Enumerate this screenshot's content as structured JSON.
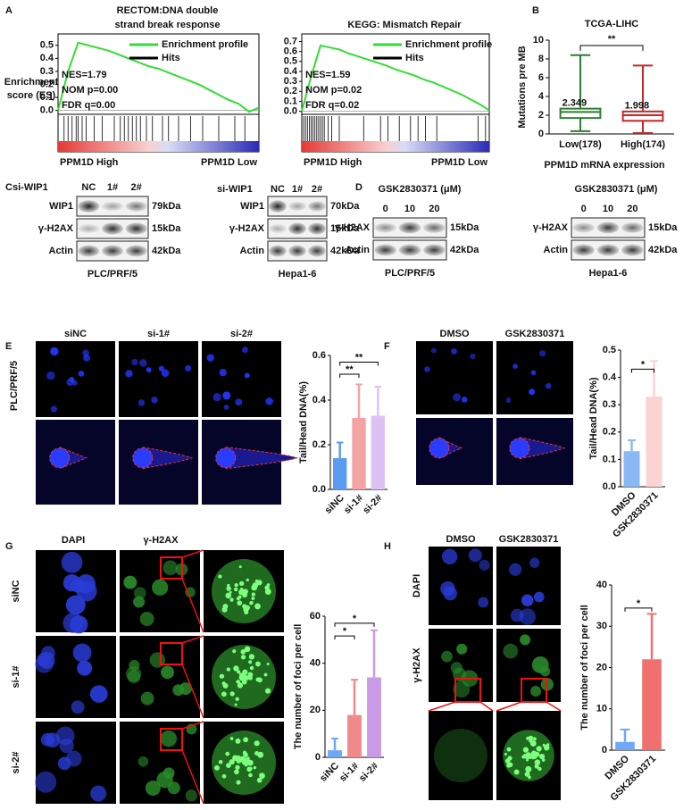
{
  "panel_labels": [
    "A",
    "B",
    "C",
    "D",
    "E",
    "F",
    "G",
    "H"
  ],
  "chart_data": [
    {
      "type": "gsea",
      "title": [
        "RECTOM:DNA double",
        "strand break response"
      ],
      "ylabel": [
        "Enrichment",
        "score (ES)"
      ],
      "x": [
        0,
        5,
        10,
        15,
        20,
        25,
        30,
        35,
        40,
        45,
        50,
        55,
        60,
        65,
        70,
        75,
        80,
        85,
        90,
        95,
        100
      ],
      "xlim": [
        0,
        100
      ],
      "ylim": [
        -0.03,
        0.56
      ],
      "yticks": [
        {
          "value": 0,
          "label": "0.0"
        },
        0.1,
        0.2,
        0.3,
        0.4,
        0.5
      ],
      "series": [
        {
          "name": "Enrichment profile",
          "color": "#33dd33",
          "values": [
            0,
            0.3,
            0.52,
            0.5,
            0.48,
            0.46,
            0.43,
            0.4,
            0.37,
            0.34,
            0.32,
            0.29,
            0.26,
            0.23,
            0.2,
            0.16,
            0.12,
            0.08,
            0.05,
            -0.01,
            0.02
          ]
        }
      ],
      "hits": {
        "name": "Hits",
        "color": "#000000",
        "x": [
          3,
          5,
          7,
          9,
          10,
          12,
          14,
          18,
          22,
          28,
          31,
          33,
          35,
          37,
          39,
          41,
          44,
          47,
          52,
          55,
          60,
          66,
          72,
          80,
          88,
          93
        ]
      },
      "annotations": [
        "NES=1.79",
        "NOM p=0.00",
        "FDR q=0.00"
      ],
      "gradient_labels": [
        {
          "text": "PPM1D High",
          "color": "#e53935"
        },
        {
          "text": "PPM1D Low",
          "color": "#1e88e5"
        }
      ]
    },
    {
      "type": "gsea",
      "title": [
        "KEGG: Mismatch Repair"
      ],
      "x": [
        0,
        5,
        10,
        15,
        20,
        25,
        30,
        35,
        40,
        45,
        50,
        55,
        60,
        65,
        70,
        75,
        80,
        85,
        90,
        95,
        100
      ],
      "xlim": [
        0,
        100
      ],
      "ylim": [
        -0.03,
        0.74
      ],
      "yticks": [
        {
          "value": 0,
          "label": "0.0"
        },
        0.1,
        0.2,
        0.3,
        0.4,
        0.5,
        0.6,
        0.7
      ],
      "series": [
        {
          "name": "Enrichment profile",
          "color": "#33dd33",
          "values": [
            0,
            0.35,
            0.66,
            0.64,
            0.62,
            0.58,
            0.55,
            0.52,
            0.49,
            0.46,
            0.42,
            0.39,
            0.36,
            0.32,
            0.29,
            0.25,
            0.21,
            0.17,
            0.12,
            0.07,
            0.01
          ]
        }
      ],
      "hits": {
        "name": "Hits",
        "color": "#000000",
        "x": [
          1,
          2,
          3,
          4,
          5,
          6,
          7,
          8,
          9,
          10,
          11,
          12,
          14,
          16,
          20,
          33,
          42,
          46,
          52,
          58,
          62,
          66,
          72,
          94,
          98
        ]
      },
      "annotations": [
        "NES=1.59",
        "NOM p=0.02",
        "FDR q=0.02"
      ],
      "gradient_labels": [
        {
          "text": "PPM1D High",
          "color": "#e53935"
        },
        {
          "text": "PPM1D Low",
          "color": "#1e88e5"
        }
      ]
    },
    {
      "type": "box",
      "title": "TCGA-LIHC",
      "ylabel": "Mutations pre MB",
      "xlabel": "PPM1D mRNA expression",
      "categories": [
        "Low(178)",
        "High(174)"
      ],
      "colors": [
        "#2e7d32",
        "#c62828"
      ],
      "boxes": [
        {
          "whislo": 0.3,
          "q1": 1.7,
          "med": 2.349,
          "q3": 2.7,
          "whishi": 8.4
        },
        {
          "whislo": 0.1,
          "q1": 1.4,
          "med": 1.998,
          "q3": 2.4,
          "whishi": 7.3
        }
      ],
      "ylim": [
        0,
        10
      ],
      "yticks": [
        0,
        2,
        4,
        6,
        8,
        10
      ],
      "significance": [
        "**"
      ]
    },
    {
      "type": "bar",
      "ylabel": "Tail/Head DNA(%)",
      "categories": [
        "siNC",
        "si-1#",
        "si-2#"
      ],
      "values": [
        0.14,
        0.32,
        0.33
      ],
      "errors": [
        0.07,
        0.15,
        0.13
      ],
      "colors": [
        "#5b9cf2",
        "#f4a3a3",
        "#dcc2f2"
      ],
      "ylim": [
        0,
        0.6
      ],
      "yticks": [
        {
          "value": 0,
          "label": "0.0"
        },
        0.2,
        0.4,
        0.6
      ],
      "significance": [
        "**",
        "**"
      ]
    },
    {
      "type": "bar",
      "ylabel": "Tail/Head DNA(%)",
      "categories": [
        "DMSO",
        "GSK2830371"
      ],
      "values": [
        0.13,
        0.33
      ],
      "errors": [
        0.04,
        0.13
      ],
      "colors": [
        "#8ab8f5",
        "#fbd3d3"
      ],
      "ylim": [
        0,
        0.5
      ],
      "yticks": [
        {
          "value": 0,
          "label": "0.0"
        },
        0.1,
        0.2,
        0.3,
        0.4,
        0.5
      ],
      "significance": [
        "*"
      ]
    },
    {
      "type": "bar",
      "ylabel": "The number of foci per cell",
      "categories": [
        "siNC",
        "si-1#",
        "si-2#"
      ],
      "values": [
        3,
        18,
        34
      ],
      "errors": [
        5,
        15,
        20
      ],
      "colors": [
        "#6fa8f7",
        "#f08a8a",
        "#c99be6"
      ],
      "ylim": [
        0,
        60
      ],
      "yticks": [
        0,
        20,
        40,
        60
      ],
      "significance": [
        "*",
        "*"
      ]
    },
    {
      "type": "bar",
      "ylabel": "The number of foci per cell",
      "categories": [
        "DMSO",
        "GSK2830371"
      ],
      "values": [
        2,
        22
      ],
      "errors": [
        3,
        11
      ],
      "colors": [
        "#6fa8f7",
        "#f07070"
      ],
      "ylim": [
        0,
        40
      ],
      "yticks": [
        0,
        10,
        20,
        30,
        40
      ],
      "significance": [
        "*"
      ]
    }
  ],
  "blots": [
    {
      "title": "si-WIP1",
      "lanes": [
        "NC",
        "1#",
        "2#"
      ],
      "rows": [
        "WIP1",
        "γ-H2AX",
        "Actin"
      ],
      "sizes": [
        "79kDa",
        "15kDa",
        "42kDa"
      ],
      "cell_line": "PLC/PRF/5"
    },
    {
      "title": "si-WIP1",
      "lanes": [
        "NC",
        "1#",
        "2#"
      ],
      "rows": [
        "WIP1",
        "γ-H2AX",
        "Actin"
      ],
      "sizes": [
        "70kDa",
        "15kDa",
        "42kDa"
      ],
      "cell_line": "Hepa1-6"
    },
    {
      "title": "GSK2830371 (μM)",
      "lanes": [
        "0",
        "10",
        "20"
      ],
      "rows": [
        "γ-H2AX",
        "Actin"
      ],
      "sizes": [
        "15kDa",
        "42kDa"
      ],
      "cell_line": "PLC/PRF/5"
    },
    {
      "title": "GSK2830371 (μM)",
      "lanes": [
        "0",
        "10",
        "20"
      ],
      "rows": [
        "γ-H2AX",
        "Actin"
      ],
      "sizes": [
        "15kDa",
        "42kDa"
      ],
      "cell_line": "Hepa1-6"
    }
  ],
  "images": {
    "E": {
      "columns": [
        "siNC",
        "si-1#",
        "si-2#"
      ],
      "row_label": "PLC/PRF/5"
    },
    "F": {
      "columns": [
        "DMSO",
        "GSK2830371"
      ]
    },
    "G": {
      "columns": [
        {
          "text": "DAPI",
          "color": "#1a3be0"
        },
        {
          "text": "γ-H2AX",
          "color": "#1db31d"
        }
      ],
      "rows": [
        "siNC",
        "si-1#",
        "si-2#"
      ]
    },
    "H": {
      "columns": [
        "DMSO",
        "GSK2830371"
      ],
      "rows": [
        {
          "text": "DAPI",
          "color": "#1a3be0"
        },
        {
          "text": "γ-H2AX",
          "color": "#1db31d"
        }
      ]
    }
  }
}
